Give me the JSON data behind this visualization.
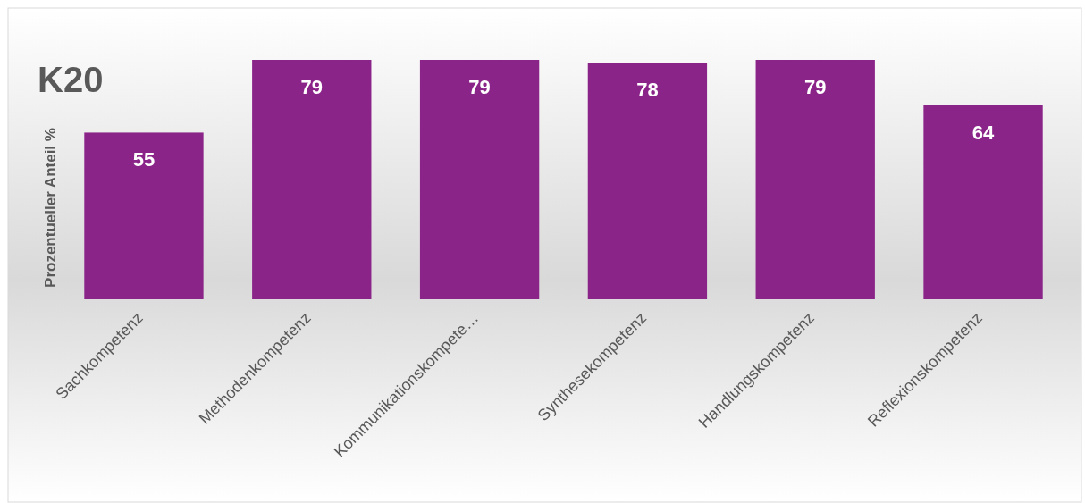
{
  "chart_data": {
    "type": "bar",
    "title": "K20",
    "ylabel": "Prozentueller Anteil %",
    "categories": [
      "Sachkompetenz",
      "Methodenkompetenz",
      "Kommunikationskompete…",
      "Synthesekompetenz",
      "Handlungskompetenz",
      "Reflexionskompetenz"
    ],
    "values": [
      55,
      79,
      79,
      78,
      79,
      64
    ],
    "color": "#8b2489",
    "data_labels": true
  }
}
